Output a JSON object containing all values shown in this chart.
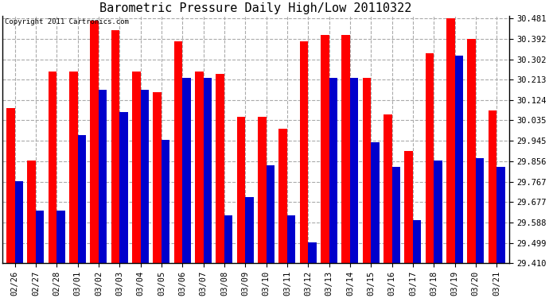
{
  "title": "Barometric Pressure Daily High/Low 20110322",
  "copyright": "Copyright 2011 Cartronics.com",
  "categories": [
    "02/26",
    "02/27",
    "02/28",
    "03/01",
    "03/02",
    "03/03",
    "03/04",
    "03/05",
    "03/06",
    "03/07",
    "03/08",
    "03/09",
    "03/10",
    "03/11",
    "03/12",
    "03/13",
    "03/14",
    "03/15",
    "03/16",
    "03/17",
    "03/18",
    "03/19",
    "03/20",
    "03/21"
  ],
  "highs": [
    30.09,
    29.86,
    30.25,
    30.25,
    30.47,
    30.43,
    30.25,
    30.16,
    30.38,
    30.25,
    30.24,
    30.05,
    30.05,
    30.0,
    30.38,
    30.41,
    30.41,
    30.22,
    30.06,
    29.9,
    30.33,
    30.48,
    30.39,
    30.08
  ],
  "lows": [
    29.77,
    29.64,
    29.64,
    29.97,
    30.17,
    30.07,
    30.17,
    29.95,
    30.22,
    30.22,
    29.62,
    29.7,
    29.84,
    29.62,
    29.5,
    30.22,
    30.22,
    29.94,
    29.83,
    29.6,
    29.86,
    30.32,
    29.87,
    29.83
  ],
  "high_color": "#ff0000",
  "low_color": "#0000cc",
  "ylim_min": 29.41,
  "ylim_max": 30.491,
  "yticks": [
    29.41,
    29.499,
    29.588,
    29.677,
    29.767,
    29.856,
    29.945,
    30.035,
    30.124,
    30.213,
    30.302,
    30.392,
    30.481
  ],
  "ytick_labels": [
    "29.410",
    "29.499",
    "29.588",
    "29.677",
    "29.767",
    "29.856",
    "29.945",
    "30.035",
    "30.124",
    "30.213",
    "30.302",
    "30.392",
    "30.481"
  ],
  "background_color": "#ffffff",
  "plot_bg_color": "#ffffff",
  "grid_color": "#aaaaaa",
  "bar_width": 0.4,
  "title_fontsize": 11,
  "tick_fontsize": 7.5,
  "copyright_fontsize": 6.5
}
